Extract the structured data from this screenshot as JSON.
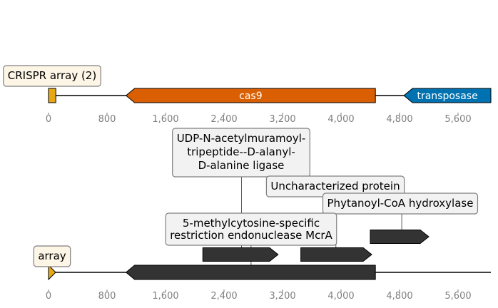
{
  "colors": {
    "axis_line": "#000000",
    "tick_text": "#7f7f7f",
    "cas9": "#d95f02",
    "transposase": "#0072b2",
    "crispr_array": "#e6a817",
    "track2_feature": "#333333",
    "label_box_bg_top": "#fdf5e6",
    "label_box_bg_bottom": "#f2f2f2",
    "label_box_border": "#7f7f7f"
  },
  "axis": {
    "ticks": [
      "0",
      "800",
      "1,600",
      "2,400",
      "3,200",
      "4,000",
      "4,800",
      "5,600"
    ],
    "tick_values": [
      0,
      800,
      1600,
      2400,
      3200,
      4000,
      4800,
      5600
    ],
    "range_bp": [
      0,
      6050
    ]
  },
  "track1": {
    "features": [
      {
        "name": "crispr",
        "label": "CRISPR array (2)",
        "start": 0,
        "end": 100,
        "strand": 0,
        "color": "#e6a817",
        "label_inside": false
      },
      {
        "name": "cas9",
        "label": "cas9",
        "start": 1060,
        "end": 4470,
        "strand": -1,
        "color": "#d95f02",
        "label_inside": true
      },
      {
        "name": "transposase",
        "label": "transposase",
        "start": 4860,
        "end": 6050,
        "strand": -1,
        "color": "#0072b2",
        "label_inside": true
      }
    ]
  },
  "track2": {
    "features": [
      {
        "name": "array",
        "label": "array",
        "start": 0,
        "end": 90,
        "strand": 1,
        "color": "#e6a817"
      },
      {
        "name": "big-reverse-gene",
        "label": "",
        "start": 1060,
        "end": 4470,
        "strand": -1,
        "color": "#333333"
      },
      {
        "name": "mcra-gene",
        "label": "",
        "start": 2110,
        "end": 3140,
        "strand": 1,
        "color": "#333333"
      },
      {
        "name": "uncharacterized-gene",
        "label": "",
        "start": 3450,
        "end": 4420,
        "strand": 1,
        "color": "#333333"
      },
      {
        "name": "phytanoyl-gene",
        "label": "",
        "start": 4400,
        "end": 5200,
        "strand": 1,
        "color": "#333333"
      }
    ],
    "annotations": [
      {
        "name": "ligase",
        "lines": [
          "UDP-N-acetylmuramoyl-",
          "tripeptide--D-alanyl-",
          "D-alanine ligase"
        ],
        "anchor": 2640
      },
      {
        "name": "uncharacterized",
        "lines": [
          "Uncharacterized protein"
        ],
        "anchor": 3930
      },
      {
        "name": "phytanoyl",
        "lines": [
          "Phytanoyl-CoA hydroxylase"
        ],
        "anchor": 4830
      },
      {
        "name": "mcra",
        "lines": [
          "5-methylcytosine-specific",
          "restriction endonuclease McrA"
        ],
        "anchor": 2770
      }
    ]
  }
}
